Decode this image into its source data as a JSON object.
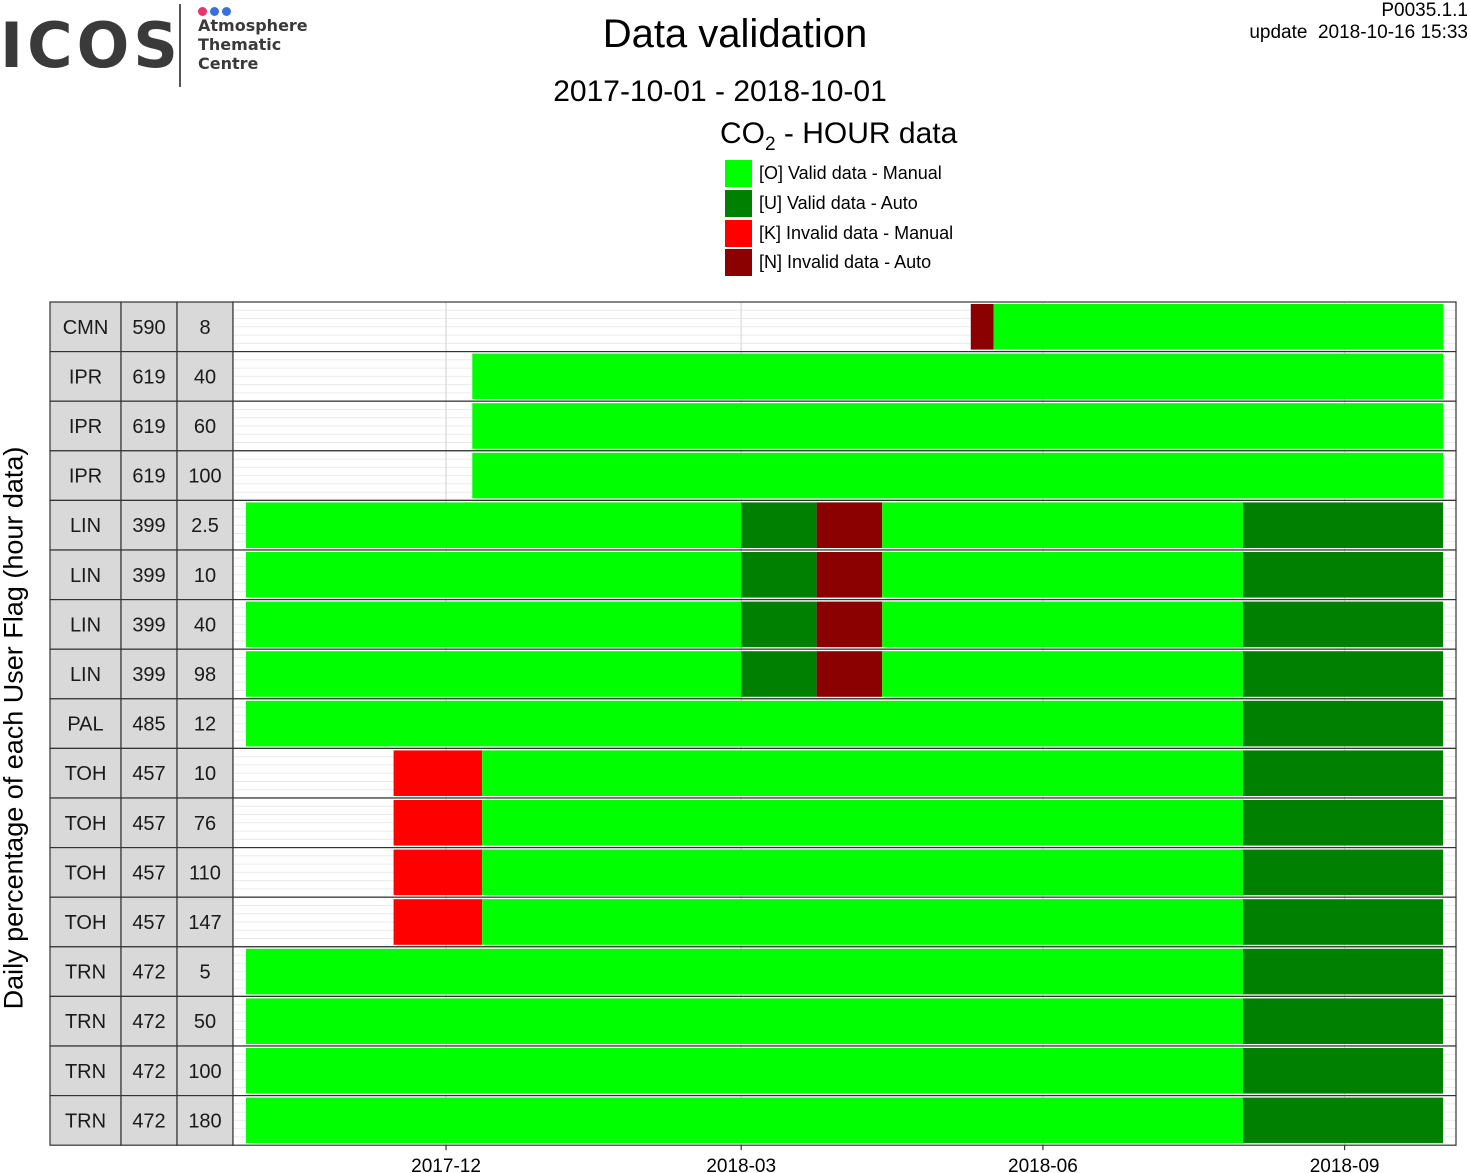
{
  "header": {
    "logo": {
      "wordmark": "ICOS",
      "lines": [
        "Atmosphere",
        "Thematic",
        "Centre"
      ],
      "dot_colors": [
        "#e8336d",
        "#3a6fe0",
        "#3a6fe0"
      ]
    },
    "title": "Data validation",
    "date_range": "2017-10-01 - 2018-10-01",
    "plot_id": "P0035.1.1",
    "update": "update  2018-10-16 15:33"
  },
  "chart_data": {
    "type": "area",
    "title": "Data validation",
    "subtitle": "2017-10-01 - 2018-10-01",
    "legend_title_main": "CO",
    "legend_title_sub": "2",
    "legend_title_rest": " - HOUR data",
    "ylabel": "Daily percentage of each User Flag (hour data)",
    "xlim": [
      "2017-10-01",
      "2018-10-01"
    ],
    "x_ticks": [
      {
        "date": "2017-12-01",
        "label": "2017-12"
      },
      {
        "date": "2018-03-01",
        "label": "2018-03"
      },
      {
        "date": "2018-06-01",
        "label": "2018-06"
      },
      {
        "date": "2018-09-01",
        "label": "2018-09"
      }
    ],
    "ylim": [
      0,
      100
    ],
    "grid": true,
    "legend_position": "top",
    "flags": [
      {
        "code": "O",
        "label": "[O] Valid data - Manual",
        "color": "#00ff00"
      },
      {
        "code": "U",
        "label": "[U] Valid data - Auto",
        "color": "#008000"
      },
      {
        "code": "K",
        "label": "[K] Invalid data - Manual",
        "color": "#ff0000"
      },
      {
        "code": "N",
        "label": "[N] Invalid data - Auto",
        "color": "#8b0000"
      }
    ],
    "panels": [
      {
        "station": "CMN",
        "alt": "590",
        "height": "8",
        "segments": [
          {
            "start": "2018-05-10",
            "end": "2018-05-17",
            "flag": "N"
          },
          {
            "start": "2018-05-17",
            "end": "2018-10-01",
            "flag": "O"
          }
        ]
      },
      {
        "station": "IPR",
        "alt": "619",
        "height": "40",
        "segments": [
          {
            "start": "2017-12-09",
            "end": "2018-10-01",
            "flag": "O"
          }
        ]
      },
      {
        "station": "IPR",
        "alt": "619",
        "height": "60",
        "segments": [
          {
            "start": "2017-12-09",
            "end": "2018-10-01",
            "flag": "O"
          }
        ]
      },
      {
        "station": "IPR",
        "alt": "619",
        "height": "100",
        "segments": [
          {
            "start": "2017-12-09",
            "end": "2018-10-01",
            "flag": "O"
          }
        ]
      },
      {
        "station": "LIN",
        "alt": "399",
        "height": "2.5",
        "segments": [
          {
            "start": "2017-10-01",
            "end": "2018-03-01",
            "flag": "O"
          },
          {
            "start": "2018-03-01",
            "end": "2018-03-24",
            "flag": "U"
          },
          {
            "start": "2018-03-24",
            "end": "2018-04-13",
            "flag": "N"
          },
          {
            "start": "2018-04-13",
            "end": "2018-08-01",
            "flag": "O"
          },
          {
            "start": "2018-08-01",
            "end": "2018-10-01",
            "flag": "U"
          }
        ]
      },
      {
        "station": "LIN",
        "alt": "399",
        "height": "10",
        "segments": [
          {
            "start": "2017-10-01",
            "end": "2018-03-01",
            "flag": "O"
          },
          {
            "start": "2018-03-01",
            "end": "2018-03-24",
            "flag": "U"
          },
          {
            "start": "2018-03-24",
            "end": "2018-04-13",
            "flag": "N"
          },
          {
            "start": "2018-04-13",
            "end": "2018-08-01",
            "flag": "O"
          },
          {
            "start": "2018-08-01",
            "end": "2018-10-01",
            "flag": "U"
          }
        ]
      },
      {
        "station": "LIN",
        "alt": "399",
        "height": "40",
        "segments": [
          {
            "start": "2017-10-01",
            "end": "2018-03-01",
            "flag": "O"
          },
          {
            "start": "2018-03-01",
            "end": "2018-03-24",
            "flag": "U"
          },
          {
            "start": "2018-03-24",
            "end": "2018-04-13",
            "flag": "N"
          },
          {
            "start": "2018-04-13",
            "end": "2018-08-01",
            "flag": "O"
          },
          {
            "start": "2018-08-01",
            "end": "2018-10-01",
            "flag": "U"
          }
        ]
      },
      {
        "station": "LIN",
        "alt": "399",
        "height": "98",
        "segments": [
          {
            "start": "2017-10-01",
            "end": "2018-03-01",
            "flag": "O"
          },
          {
            "start": "2018-03-01",
            "end": "2018-03-24",
            "flag": "U"
          },
          {
            "start": "2018-03-24",
            "end": "2018-04-13",
            "flag": "N"
          },
          {
            "start": "2018-04-13",
            "end": "2018-08-01",
            "flag": "O"
          },
          {
            "start": "2018-08-01",
            "end": "2018-10-01",
            "flag": "U"
          }
        ]
      },
      {
        "station": "PAL",
        "alt": "485",
        "height": "12",
        "segments": [
          {
            "start": "2017-10-01",
            "end": "2018-08-01",
            "flag": "O"
          },
          {
            "start": "2018-08-01",
            "end": "2018-10-01",
            "flag": "U"
          }
        ]
      },
      {
        "station": "TOH",
        "alt": "457",
        "height": "10",
        "segments": [
          {
            "start": "2017-11-15",
            "end": "2017-12-12",
            "flag": "K"
          },
          {
            "start": "2017-12-12",
            "end": "2018-08-01",
            "flag": "O"
          },
          {
            "start": "2018-08-01",
            "end": "2018-10-01",
            "flag": "U"
          }
        ]
      },
      {
        "station": "TOH",
        "alt": "457",
        "height": "76",
        "segments": [
          {
            "start": "2017-11-15",
            "end": "2017-12-12",
            "flag": "K"
          },
          {
            "start": "2017-12-12",
            "end": "2018-08-01",
            "flag": "O"
          },
          {
            "start": "2018-08-01",
            "end": "2018-10-01",
            "flag": "U"
          }
        ]
      },
      {
        "station": "TOH",
        "alt": "457",
        "height": "110",
        "segments": [
          {
            "start": "2017-11-15",
            "end": "2017-12-12",
            "flag": "K"
          },
          {
            "start": "2017-12-12",
            "end": "2018-08-01",
            "flag": "O"
          },
          {
            "start": "2018-08-01",
            "end": "2018-10-01",
            "flag": "U"
          }
        ]
      },
      {
        "station": "TOH",
        "alt": "457",
        "height": "147",
        "segments": [
          {
            "start": "2017-11-15",
            "end": "2017-12-12",
            "flag": "K"
          },
          {
            "start": "2017-12-12",
            "end": "2018-08-01",
            "flag": "O"
          },
          {
            "start": "2018-08-01",
            "end": "2018-10-01",
            "flag": "U"
          }
        ]
      },
      {
        "station": "TRN",
        "alt": "472",
        "height": "5",
        "segments": [
          {
            "start": "2017-10-01",
            "end": "2018-08-01",
            "flag": "O"
          },
          {
            "start": "2018-08-01",
            "end": "2018-10-01",
            "flag": "U"
          }
        ]
      },
      {
        "station": "TRN",
        "alt": "472",
        "height": "50",
        "segments": [
          {
            "start": "2017-10-01",
            "end": "2018-08-01",
            "flag": "O"
          },
          {
            "start": "2018-08-01",
            "end": "2018-10-01",
            "flag": "U"
          }
        ]
      },
      {
        "station": "TRN",
        "alt": "472",
        "height": "100",
        "segments": [
          {
            "start": "2017-10-01",
            "end": "2018-08-01",
            "flag": "O"
          },
          {
            "start": "2018-08-01",
            "end": "2018-10-01",
            "flag": "U"
          }
        ]
      },
      {
        "station": "TRN",
        "alt": "472",
        "height": "180",
        "segments": [
          {
            "start": "2017-10-01",
            "end": "2018-08-01",
            "flag": "O"
          },
          {
            "start": "2018-08-01",
            "end": "2018-10-01",
            "flag": "U"
          }
        ]
      }
    ]
  }
}
